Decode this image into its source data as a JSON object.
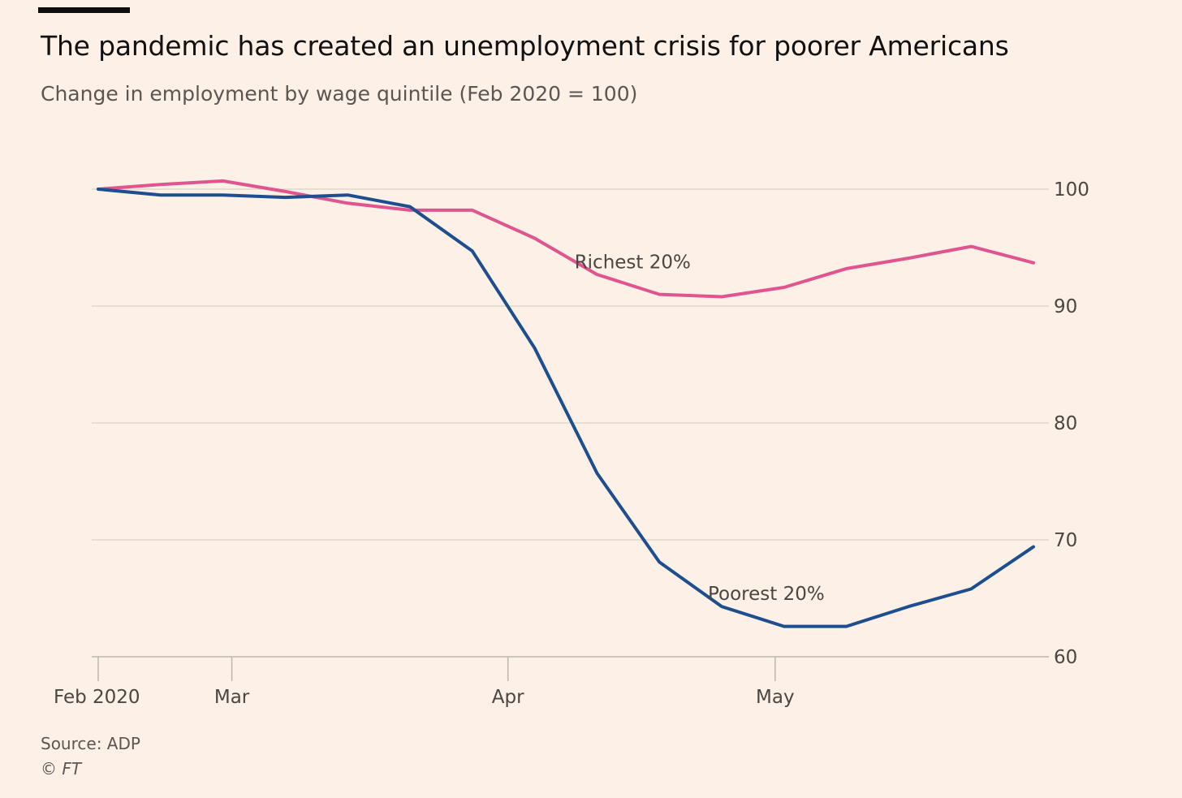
{
  "header": {
    "title": "The pandemic has created an unemployment crisis for poorer Americans",
    "subtitle": "Change in employment by wage quintile (Feb 2020 = 100)"
  },
  "footer": {
    "source": "Source: ADP",
    "credit": "© FT"
  },
  "chart_data": {
    "type": "line",
    "title": "The pandemic has created an unemployment crisis for poorer Americans",
    "subtitle": "Change in employment by wage quintile (Feb 2020 = 100)",
    "xlabel": "",
    "ylabel": "",
    "x": [
      "2020-02-15",
      "2020-02-22",
      "2020-02-29",
      "2020-03-07",
      "2020-03-14",
      "2020-03-21",
      "2020-03-28",
      "2020-04-04",
      "2020-04-11",
      "2020-04-18",
      "2020-04-25",
      "2020-05-02",
      "2020-05-09",
      "2020-05-16",
      "2020-05-23",
      "2020-05-30"
    ],
    "x_ticks": [
      {
        "date": "2020-02-15",
        "label": "Feb 2020"
      },
      {
        "date": "2020-03-01",
        "label": "Mar"
      },
      {
        "date": "2020-04-01",
        "label": "Apr"
      },
      {
        "date": "2020-05-01",
        "label": "May"
      }
    ],
    "y_ticks": [
      100,
      90,
      80,
      70,
      60
    ],
    "ylim": [
      60,
      100
    ],
    "xlim": [
      "2020-02-14",
      "2020-05-30"
    ],
    "y_axis_side": "right",
    "grid": true,
    "series": [
      {
        "name": "Richest 20%",
        "color": "#e0558f",
        "values": [
          100,
          100.4,
          100.7,
          99.8,
          98.8,
          98.2,
          98.2,
          95.8,
          92.7,
          91.0,
          90.8,
          91.6,
          93.2,
          94.1,
          95.1,
          93.7
        ]
      },
      {
        "name": "Poorest 20%",
        "color": "#1d4e8f",
        "values": [
          100,
          99.5,
          99.5,
          99.3,
          99.5,
          98.5,
          94.7,
          86.4,
          75.7,
          68.1,
          64.3,
          62.6,
          62.6,
          64.3,
          65.8,
          69.4
        ]
      }
    ],
    "annotations": [
      {
        "series": "Richest 20%",
        "text": "Richest 20%",
        "at_date": "2020-04-15",
        "at_value": 93.8
      },
      {
        "series": "Poorest 20%",
        "text": "Poorest 20%",
        "at_date": "2020-04-30",
        "at_value": 65.4
      }
    ]
  }
}
